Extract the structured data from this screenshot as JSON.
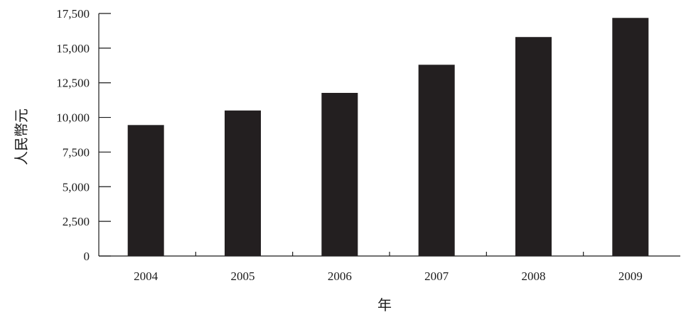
{
  "chart_data": {
    "type": "bar",
    "categories": [
      "2004",
      "2005",
      "2006",
      "2007",
      "2008",
      "2009"
    ],
    "values": [
      9450,
      10500,
      11770,
      13800,
      15800,
      17180
    ],
    "xlabel": "年",
    "ylabel": "人民幣元",
    "ylim": [
      0,
      17500
    ],
    "yticks": [
      0,
      2500,
      5000,
      7500,
      10000,
      12500,
      15000,
      17500
    ],
    "ytick_labels": [
      "0",
      "2,500",
      "5,000",
      "7,500",
      "10,000",
      "12,500",
      "15,000",
      "17,500"
    ],
    "bar_color": "#231f20",
    "grid": false,
    "legend": "none"
  }
}
